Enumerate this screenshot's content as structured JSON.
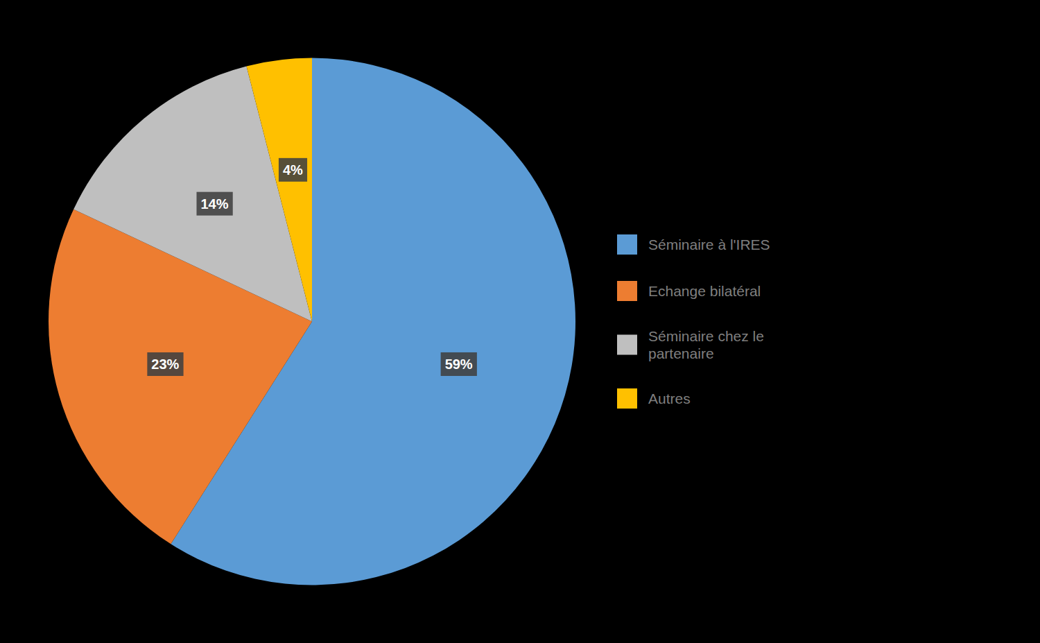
{
  "chart_data": {
    "type": "pie",
    "categories": [
      "Séminaire à l'IRES",
      "Echange bilatéral",
      "Séminaire chez le\n  partenaire",
      "Autres"
    ],
    "values": [
      59,
      23,
      14,
      4
    ],
    "value_labels": [
      "59%",
      "23%",
      "14%",
      "4%"
    ],
    "colors": [
      "#5B9BD5",
      "#ED7D31",
      "#BFBFBF",
      "#FFC000"
    ],
    "data_labels": true,
    "legend": "right"
  }
}
